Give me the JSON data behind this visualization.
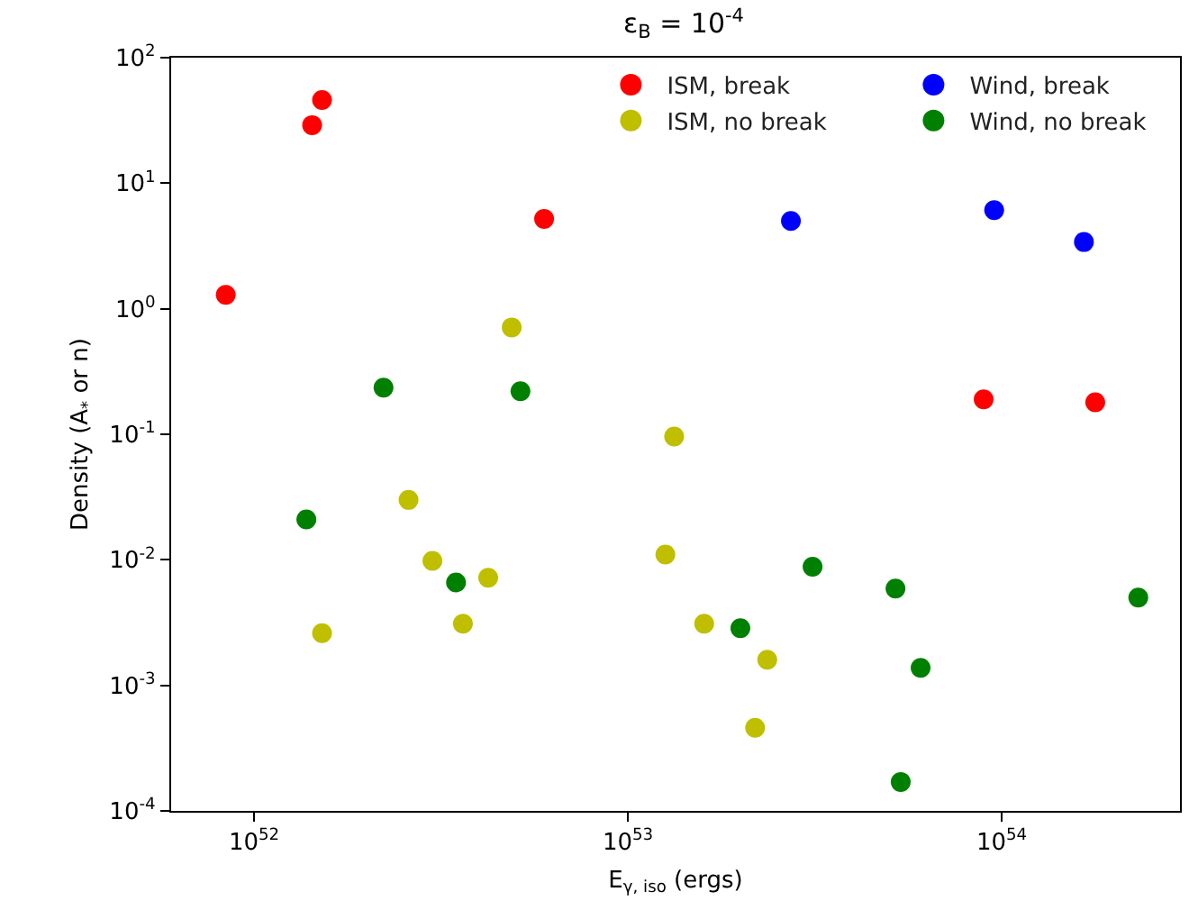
{
  "chart_data": {
    "type": "scatter",
    "title": "ε$_{B}$ = 10$^{-4}$",
    "xlabel": "E$_{γ, iso}$ (ergs)",
    "ylabel": "Density (A$_{*}$ or n)",
    "log": "xy",
    "grid": false,
    "marker": "circle",
    "legend": "top right",
    "xlim": [
      6e+51,
      3e+54
    ],
    "ylim": [
      0.0001,
      100
    ],
    "xticks": [
      {
        "value": 1e+52,
        "label": "10$^{52}$"
      },
      {
        "value": 1e+53,
        "label": "10$^{53}$"
      },
      {
        "value": 1e+54,
        "label": "10$^{54}$"
      }
    ],
    "yticks": [
      {
        "value": 0.0001,
        "label": "10$^{-4}$"
      },
      {
        "value": 0.001,
        "label": "10$^{-3}$"
      },
      {
        "value": 0.01,
        "label": "10$^{-2}$"
      },
      {
        "value": 0.1,
        "label": "10$^{-1}$"
      },
      {
        "value": 1,
        "label": "10$^{0}$"
      },
      {
        "value": 10,
        "label": "10$^{1}$"
      },
      {
        "value": 100,
        "label": "10$^{2}$"
      }
    ],
    "series": [
      {
        "name": "ISM, break",
        "color": "#ff0000",
        "x": [
          8.4e+51,
          1.43e+52,
          1.52e+52,
          5.97e+52,
          8.95e+53,
          1.78e+54
        ],
        "values": [
          1.29,
          29,
          46,
          5.2,
          0.19,
          0.18
        ]
      },
      {
        "name": "Wind, break",
        "color": "#0000ff",
        "x": [
          2.73e+53,
          9.55e+53,
          1.66e+54
        ],
        "values": [
          5.0,
          6.1,
          3.4
        ]
      },
      {
        "name": "ISM, no break",
        "color": "#bfbf00",
        "x": [
          4.89e+52,
          1.33e+53,
          2.59e+52,
          3e+52,
          4.23e+52,
          3.62e+52,
          1.52e+52,
          1.26e+53,
          1.6e+53,
          2.36e+53,
          2.19e+53
        ],
        "values": [
          0.71,
          0.096,
          0.03,
          0.0098,
          0.0072,
          0.0031,
          0.0026,
          0.011,
          0.0031,
          0.0016,
          0.00046
        ]
      },
      {
        "name": "Wind, no break",
        "color": "#008000",
        "x": [
          2.22e+52,
          5.16e+52,
          1.38e+52,
          3.47e+52,
          3.12e+53,
          5.2e+53,
          2.32e+54,
          2e+53,
          6.07e+53,
          5.37e+53
        ],
        "values": [
          0.235,
          0.22,
          0.021,
          0.0066,
          0.0088,
          0.0059,
          0.005,
          0.00285,
          0.00138,
          0.00017
        ]
      }
    ]
  }
}
